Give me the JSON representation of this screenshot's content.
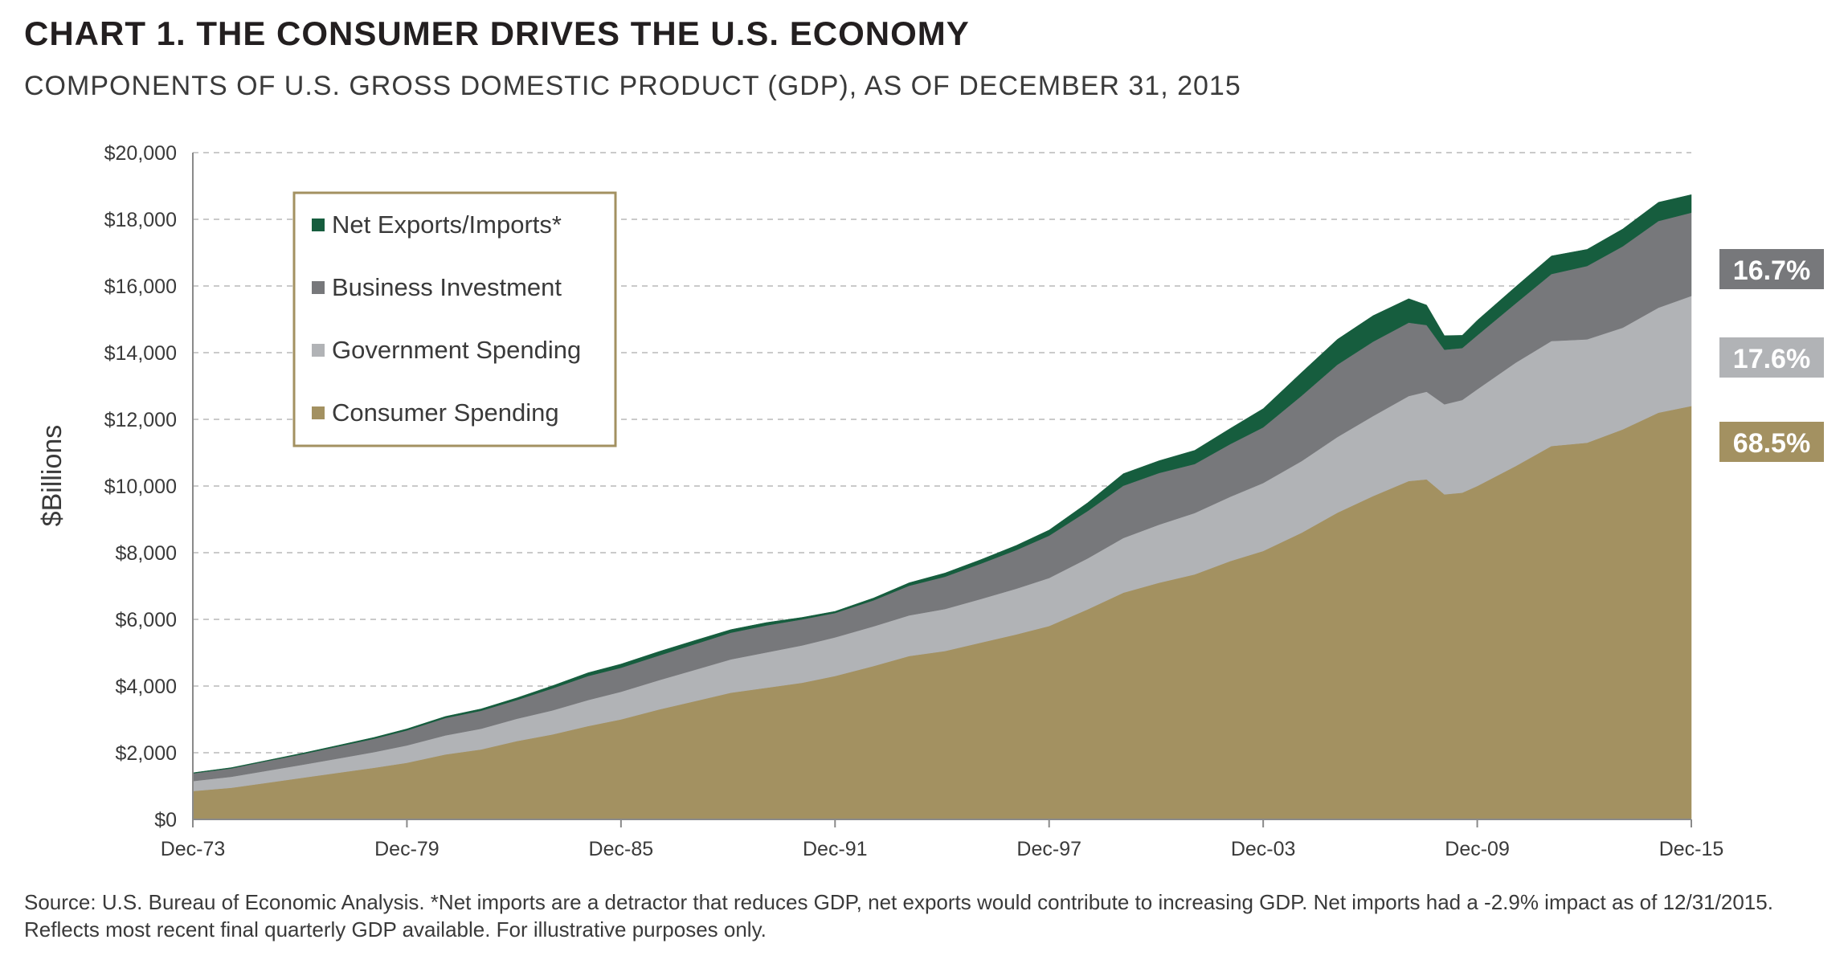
{
  "header": {
    "title": "CHART 1. THE CONSUMER DRIVES THE U.S. ECONOMY",
    "subtitle": "COMPONENTS OF U.S. GROSS DOMESTIC PRODUCT (GDP), AS OF DECEMBER 31, 2015"
  },
  "footer": {
    "source": "Source: U.S. Bureau of Economic Analysis. *Net imports are a detractor that reduces GDP, net exports would contribute to increasing GDP.  Net imports had a -2.9% impact as of 12/31/2015. Reflects most recent final quarterly GDP available. For illustrative purposes only."
  },
  "chart_data": {
    "type": "area",
    "stacked": true,
    "ylabel": "$Billions",
    "xlabel": "",
    "ylim": [
      0,
      20000
    ],
    "yticks": [
      0,
      2000,
      4000,
      6000,
      8000,
      10000,
      12000,
      14000,
      16000,
      18000,
      20000
    ],
    "ytick_labels": [
      "$0",
      "$2,000",
      "$4,000",
      "$6,000",
      "$8,000",
      "$10,000",
      "$12,000",
      "$14,000",
      "$16,000",
      "$18,000",
      "$20,000"
    ],
    "xlim": [
      1973.92,
      2015.92
    ],
    "xticks": [
      1973.92,
      1979.92,
      1985.92,
      1991.92,
      1997.92,
      2003.92,
      2009.92,
      2015.92
    ],
    "xtick_labels": [
      "Dec-73",
      "Dec-79",
      "Dec-85",
      "Dec-91",
      "Dec-97",
      "Dec-03",
      "Dec-09",
      "Dec-15"
    ],
    "grid": "horizontal dashed",
    "legend_position": "top-left",
    "legend": [
      "Net Exports/Imports*",
      "Business Investment",
      "Government Spending",
      "Consumer Spending"
    ],
    "x": [
      1973.92,
      1975.0,
      1976.0,
      1977.0,
      1978.0,
      1979.0,
      1979.92,
      1981.0,
      1982.0,
      1983.0,
      1984.0,
      1985.0,
      1985.92,
      1987.0,
      1988.0,
      1989.0,
      1990.0,
      1991.0,
      1991.92,
      1993.0,
      1994.0,
      1995.0,
      1996.0,
      1997.0,
      1997.92,
      1999.0,
      2000.0,
      2001.0,
      2002.0,
      2003.0,
      2003.92,
      2005.0,
      2006.0,
      2007.0,
      2008.0,
      2008.5,
      2009.0,
      2009.5,
      2009.92,
      2011.0,
      2012.0,
      2013.0,
      2014.0,
      2015.0,
      2015.92
    ],
    "series": [
      {
        "name": "Consumer Spending",
        "color": "#a39161",
        "values": [
          850,
          950,
          1100,
          1250,
          1400,
          1550,
          1700,
          1950,
          2100,
          2350,
          2550,
          2800,
          3000,
          3300,
          3550,
          3800,
          3950,
          4100,
          4300,
          4600,
          4900,
          5050,
          5300,
          5550,
          5800,
          6300,
          6800,
          7100,
          7350,
          7750,
          8050,
          8600,
          9200,
          9700,
          10150,
          10200,
          9750,
          9800,
          10000,
          10600,
          11200,
          11300,
          11700,
          12200,
          12400
        ]
      },
      {
        "name": "Government Spending",
        "color": "#b1b3b6",
        "values": [
          300,
          330,
          360,
          390,
          430,
          470,
          520,
          570,
          620,
          670,
          720,
          780,
          830,
          880,
          940,
          1000,
          1060,
          1120,
          1160,
          1190,
          1220,
          1260,
          1310,
          1370,
          1440,
          1530,
          1640,
          1740,
          1840,
          1930,
          2040,
          2150,
          2270,
          2400,
          2550,
          2630,
          2700,
          2780,
          2900,
          3100,
          3150,
          3100,
          3050,
          3150,
          3300
        ]
      },
      {
        "name": "Business Investment",
        "color": "#77787b",
        "values": [
          230,
          250,
          290,
          320,
          360,
          400,
          450,
          520,
          540,
          560,
          660,
          720,
          720,
          740,
          770,
          800,
          810,
          780,
          730,
          780,
          890,
          970,
          1060,
          1160,
          1270,
          1420,
          1570,
          1550,
          1470,
          1580,
          1670,
          1960,
          2170,
          2230,
          2200,
          2000,
          1640,
          1560,
          1620,
          1780,
          2010,
          2200,
          2440,
          2600,
          2500
        ]
      },
      {
        "name": "Net Exports/Imports*",
        "color": "#165d3e",
        "values": [
          20,
          25,
          20,
          30,
          35,
          40,
          45,
          50,
          55,
          65,
          80,
          100,
          110,
          120,
          110,
          95,
          85,
          60,
          50,
          70,
          90,
          110,
          120,
          140,
          170,
          250,
          360,
          370,
          410,
          470,
          560,
          700,
          760,
          780,
          720,
          600,
          420,
          380,
          450,
          500,
          540,
          500,
          520,
          560,
          540
        ]
      }
    ],
    "annotations": [
      {
        "text": "16.7%",
        "series": "Business Investment",
        "color": "#77787b"
      },
      {
        "text": "17.6%",
        "series": "Government Spending",
        "color": "#b1b3b6"
      },
      {
        "text": "68.5%",
        "series": "Consumer Spending",
        "color": "#a39161"
      }
    ]
  }
}
